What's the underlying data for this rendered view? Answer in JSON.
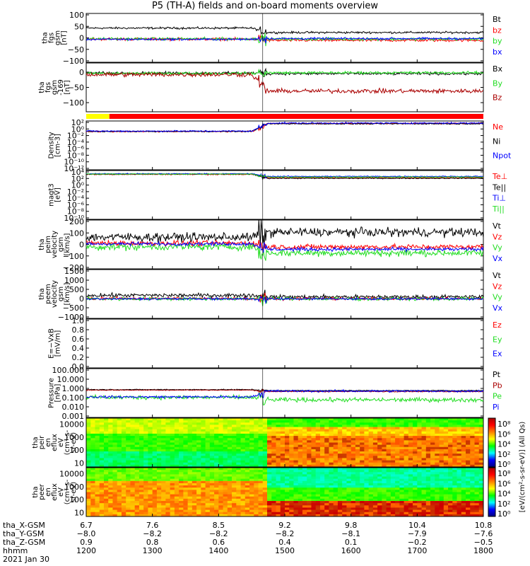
{
  "title": "P5 (TH-A) fields and on-board moments overview",
  "colors": {
    "black": "#000000",
    "red": "#ff0000",
    "green": "#22dd22",
    "blue": "#0000ff",
    "darkred": "#aa0000",
    "yellow": "#ffff00"
  },
  "chart_data": [
    {
      "id": "fgs",
      "type": "line",
      "ylabel": [
        "tha",
        "fgs",
        "gsm",
        "[nT]"
      ],
      "ylim": [
        -100,
        100
      ],
      "yticks": [
        "100",
        "50",
        "0",
        "−50",
        "−100"
      ],
      "series": [
        {
          "name": "Bt",
          "color": "black",
          "base_before": 40,
          "base_after": 22,
          "noise": 3
        },
        {
          "name": "bz",
          "color": "red",
          "base_before": -5,
          "base_after": -10,
          "noise": 4
        },
        {
          "name": "by",
          "color": "green",
          "base_before": -4,
          "base_after": -5,
          "noise": 4
        },
        {
          "name": "bx",
          "color": "blue",
          "base_before": -6,
          "base_after": -3,
          "noise": 3
        }
      ]
    },
    {
      "id": "fgs_l169",
      "type": "line",
      "ylabel": [
        "tha",
        "fgs",
        "gsm",
        "-169",
        "[nT]"
      ],
      "ylim": [
        -130,
        30
      ],
      "yticks": [
        "0",
        "−50",
        "−100"
      ],
      "series": [
        {
          "name": "Bx",
          "color": "black",
          "base_before": -3,
          "base_after": -5,
          "noise": 3
        },
        {
          "name": "By",
          "color": "green",
          "base_before": -4,
          "base_after": -2,
          "noise": 3
        },
        {
          "name": "Bz",
          "color": "darkred",
          "base_before": -8,
          "base_after": -62,
          "noise": 5
        }
      ]
    },
    {
      "id": "density",
      "type": "line",
      "ylabel": [
        "Density",
        "[cm-3]"
      ],
      "ylim": [
        1e-12,
        100.0
      ],
      "log": true,
      "yticks": [
        "10²",
        "10⁰",
        "10⁻²",
        "10⁻⁴",
        "10⁻⁶",
        "10⁻⁸",
        "10⁻¹⁰",
        "10⁻¹²"
      ],
      "series": [
        {
          "name": "Ne",
          "color": "red",
          "base_before": -1,
          "base_after": 1.3,
          "noise": 0.15
        },
        {
          "name": "Ni",
          "color": "black",
          "base_before": -1,
          "base_after": 1.2,
          "noise": 0.1
        },
        {
          "name": "Npot",
          "color": "blue",
          "base_before": -0.9,
          "base_after": 1.4,
          "noise": 0.15
        }
      ]
    },
    {
      "id": "temp",
      "type": "line",
      "ylabel": [
        "magt3",
        "[eV]"
      ],
      "ylim": [
        1e-10,
        100000.0
      ],
      "log": true,
      "yticks": [
        "10⁴",
        "10²",
        "10⁰",
        "10⁻²",
        "10⁻⁴",
        "10⁻⁶",
        "10⁻⁸",
        "10⁻¹⁰"
      ],
      "series": [
        {
          "name": "Te⊥",
          "color": "red",
          "base_before": 3.8,
          "base_after": 2.8,
          "noise": 0.1
        },
        {
          "name": "Te||",
          "color": "black",
          "base_before": 3.9,
          "base_after": 2.6,
          "noise": 0.1
        },
        {
          "name": "Ti⊥",
          "color": "blue",
          "base_before": 4.0,
          "base_after": 3.2,
          "noise": 0.1
        },
        {
          "name": "Ti||",
          "color": "green",
          "base_before": 3.9,
          "base_after": 3.0,
          "noise": 0.1
        }
      ]
    },
    {
      "id": "peim",
      "type": "line",
      "ylabel": [
        "tha",
        "peim",
        "velocity",
        "gsm",
        "[km/s]"
      ],
      "ylim": [
        -200,
        200
      ],
      "yticks": [
        "200",
        "100",
        "0",
        "−100",
        "−200"
      ],
      "series": [
        {
          "name": "Vt",
          "color": "black",
          "base_before": 60,
          "base_after": 100,
          "noise": 25
        },
        {
          "name": "Vz",
          "color": "red",
          "base_before": 10,
          "base_after": -20,
          "noise": 15
        },
        {
          "name": "Vy",
          "color": "green",
          "base_before": -20,
          "base_after": -70,
          "noise": 20
        },
        {
          "name": "Vx",
          "color": "blue",
          "base_before": 5,
          "base_after": -40,
          "noise": 10
        }
      ]
    },
    {
      "id": "peem",
      "type": "line",
      "ylabel": [
        "tha",
        "peem",
        "velocity",
        "gsm",
        "[km/s]"
      ],
      "ylim": [
        -1000,
        1500
      ],
      "yticks": [
        "1500",
        "1000",
        "500",
        "0",
        "−500",
        "−1000"
      ],
      "series": [
        {
          "name": "Vt",
          "color": "black",
          "base_before": 180,
          "base_after": 100,
          "noise": 70
        },
        {
          "name": "Vz",
          "color": "red",
          "base_before": 20,
          "base_after": 10,
          "noise": 50
        },
        {
          "name": "Vy",
          "color": "green",
          "base_before": 0,
          "base_after": 0,
          "noise": 60
        },
        {
          "name": "Vx",
          "color": "blue",
          "base_before": 0,
          "base_after": 0,
          "noise": 40
        }
      ]
    },
    {
      "id": "efield",
      "type": "line",
      "ylabel": [
        "E=−VxB",
        "[mV/m]"
      ],
      "ylim": [
        0,
        1
      ],
      "yticks": [
        "1.0",
        "0.8",
        "0.6",
        "0.4",
        "0.2",
        "0.0"
      ],
      "series": [
        {
          "name": "Ez",
          "color": "red"
        },
        {
          "name": "Ey",
          "color": "green"
        },
        {
          "name": "Ex",
          "color": "blue"
        }
      ]
    },
    {
      "id": "pressure",
      "type": "line",
      "ylabel": [
        "Pressure",
        "[nPa]"
      ],
      "ylim": [
        0.001,
        100
      ],
      "log": true,
      "yticks": [
        "100.000",
        "10.000",
        "1.000",
        "0.100",
        "0.010",
        "0.001"
      ],
      "series": [
        {
          "name": "Pt",
          "color": "black",
          "base_before": -0.15,
          "base_after": -0.25,
          "noise": 0.03
        },
        {
          "name": "Pb",
          "color": "darkred",
          "base_before": -0.2,
          "base_after": -0.35,
          "noise": 0.03
        },
        {
          "name": "Pe",
          "color": "green",
          "base_before": -0.95,
          "base_after": -1.2,
          "noise": 0.15
        },
        {
          "name": "Pi",
          "color": "blue",
          "base_before": -0.9,
          "base_after": -0.3,
          "noise": 0.08
        }
      ]
    },
    {
      "id": "peir",
      "type": "heatmap",
      "ylabel": [
        "tha",
        "peir",
        "en",
        "eflux",
        "eV",
        "(cm²-s-",
        "sr-eV)"
      ],
      "ylim": [
        5,
        30000
      ],
      "log": true,
      "yticks": [
        "10000",
        "1000",
        "100",
        "10"
      ],
      "colorbar_ticks": [
        "10⁸",
        "10⁶",
        "10⁴",
        "10²",
        "10⁰"
      ]
    },
    {
      "id": "peer",
      "type": "heatmap",
      "ylabel": [
        "tha",
        "peer",
        "en",
        "eflux",
        "eV",
        "(cm²-s-",
        "sr-eV)"
      ],
      "ylim": [
        5,
        30000
      ],
      "log": true,
      "yticks": [
        "10000",
        "1000",
        "100",
        "10"
      ],
      "colorbar_ticks": [
        "10⁸",
        "10⁶",
        "10⁴",
        "10²",
        "10⁰"
      ],
      "colorbar_label": "[eV/(cm²-s-sr-eV)] (All Qs)"
    }
  ],
  "x_axis": {
    "range_hhmm": [
      1200,
      1800
    ],
    "rows": [
      {
        "label": "tha_X-GSM",
        "values": [
          "6.7",
          "7.6",
          "8.5",
          "9.2",
          "9.8",
          "10.4",
          "10.8"
        ]
      },
      {
        "label": "tha_Y-GSM",
        "values": [
          "−8.0",
          "−8.2",
          "−8.2",
          "−8.2",
          "−8.1",
          "−7.9",
          "−7.6"
        ]
      },
      {
        "label": "tha_Z-GSM",
        "values": [
          "0.9",
          "0.8",
          "0.6",
          "0.4",
          "0.1",
          "−0.2",
          "−0.5"
        ]
      },
      {
        "label": "hhmm",
        "values": [
          "1200",
          "1300",
          "1400",
          "1500",
          "1600",
          "1700",
          "1800"
        ]
      }
    ],
    "date": "2021 Jan 30",
    "event_time_hhmm": 1440
  },
  "mode_bar": {
    "yellow_until_hhmm": 1221
  }
}
